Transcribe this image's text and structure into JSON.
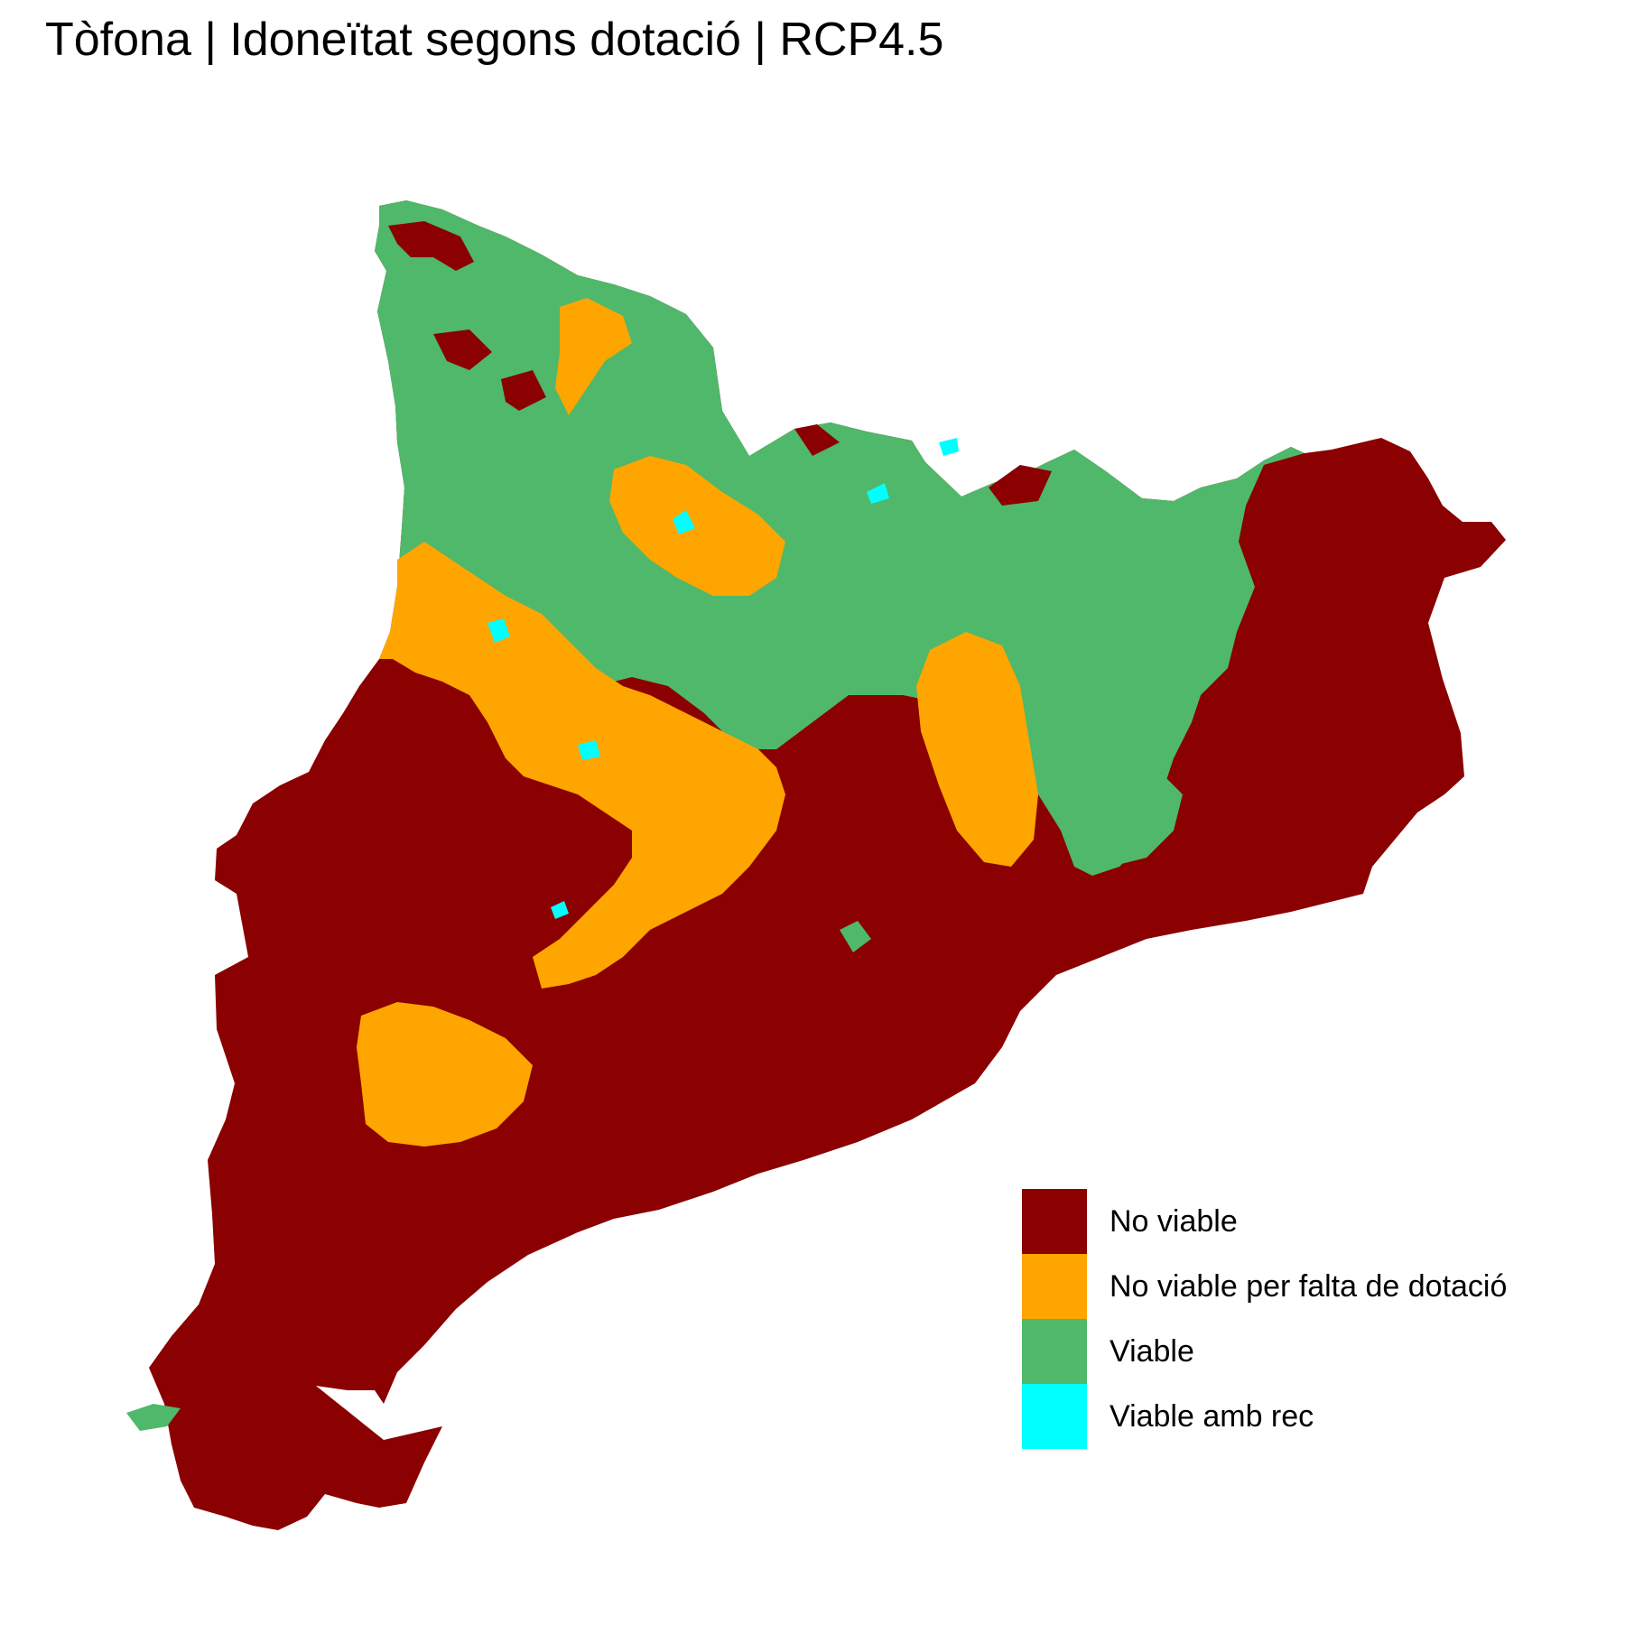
{
  "title": "Tòfona | Idoneïtat segons dotació | RCP4.5",
  "legend": [
    {
      "label": "No viable",
      "color": "#8b0000"
    },
    {
      "label": "No viable per falta de dotació",
      "color": "#ffa500"
    },
    {
      "label": "Viable",
      "color": "#4fb86a"
    },
    {
      "label": "Viable amb rec",
      "color": "#00ffff"
    }
  ]
}
